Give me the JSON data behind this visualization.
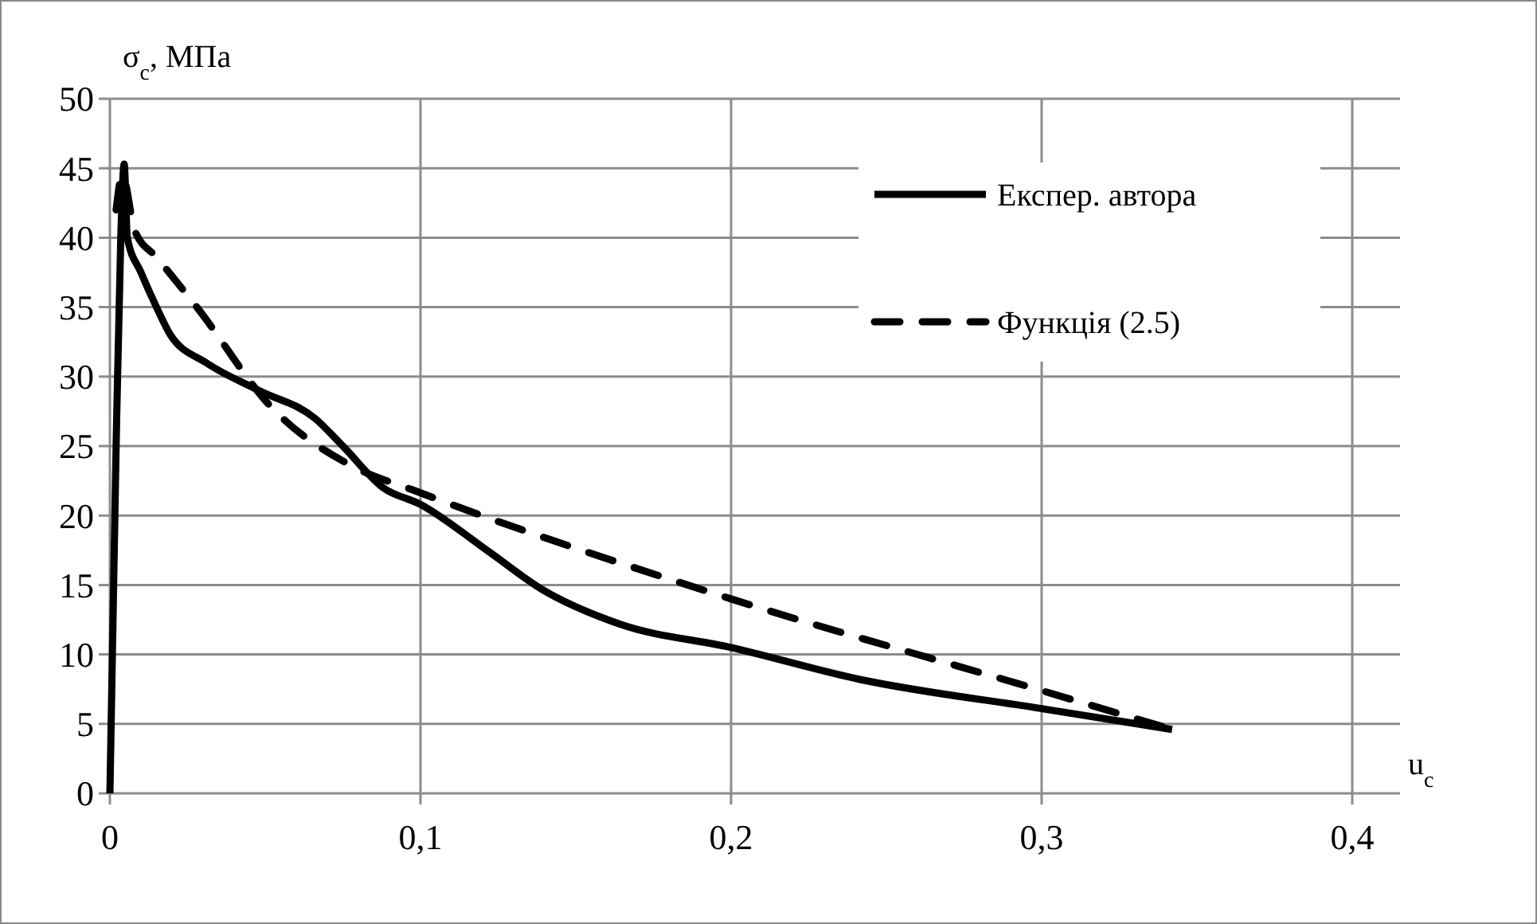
{
  "chart_data": {
    "type": "line",
    "ylabel": "σ$_{c}$, МПа",
    "xlabel": "u$_{c}$",
    "xlim": [
      0,
      0.4
    ],
    "xticks": [
      0,
      {
        "value": 0.1,
        "label": "0,1"
      },
      {
        "value": 0.2,
        "label": "0,2"
      },
      {
        "value": 0.3,
        "label": "0,3"
      },
      {
        "value": 0.4,
        "label": "0,4"
      }
    ],
    "ylim": [
      0,
      50
    ],
    "yticks": [
      0,
      5,
      10,
      15,
      20,
      25,
      30,
      35,
      40,
      45,
      50
    ],
    "grid": true,
    "legend": "top right",
    "series": [
      {
        "name": "Експер. автора",
        "color": "#000000",
        "line_style": "solid",
        "x": [
          0,
          0.002,
          0.0035,
          0.0046,
          0.0056,
          0.01,
          0.015,
          0.0195,
          0.031,
          0.048,
          0.066,
          0.075,
          0.088,
          0.1,
          0.122,
          0.139,
          0.164,
          0.2,
          0.2415,
          0.3,
          0.342
        ],
        "values": [
          0,
          25,
          40,
          45.3,
          40,
          37.5,
          35,
          33,
          31,
          29,
          27,
          25,
          22,
          20.8,
          17.4,
          14.7,
          12.2,
          10.5,
          8.2,
          6.1,
          4.6
        ]
      },
      {
        "name": "Функція (2.5)",
        "color": "#000000",
        "line_style": "dashed",
        "x": [
          0.002,
          0.004,
          0.008,
          0.015,
          0.028,
          0.052,
          0.0785,
          0.098,
          0.2,
          0.3,
          0.342
        ],
        "values": [
          42,
          44.5,
          40.5,
          38.6,
          35,
          27.8,
          23.5,
          21.8,
          14,
          7.4,
          4.6
        ]
      }
    ]
  }
}
